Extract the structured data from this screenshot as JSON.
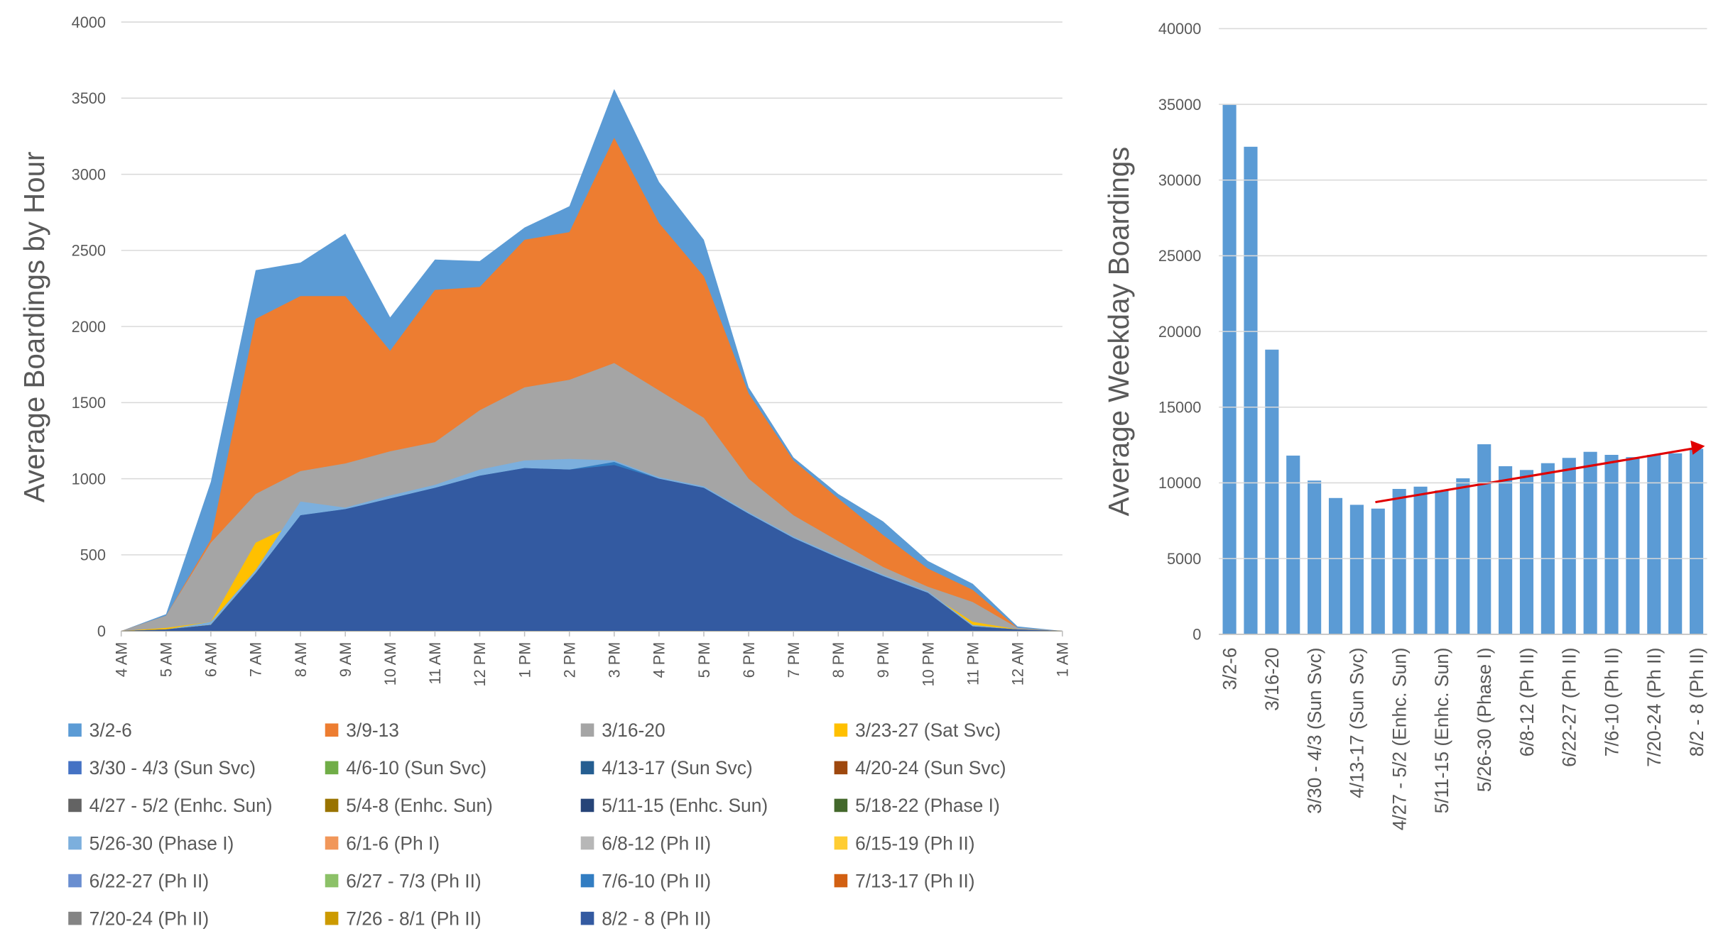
{
  "chart_data": [
    {
      "type": "area",
      "y_label": "Average Boardings by Hour",
      "categories": [
        "4 AM",
        "5 AM",
        "6 AM",
        "7 AM",
        "8 AM",
        "9 AM",
        "10 AM",
        "11 AM",
        "12 PM",
        "1 PM",
        "2 PM",
        "3 PM",
        "4 PM",
        "5 PM",
        "6 PM",
        "7 PM",
        "8 PM",
        "9 PM",
        "10 PM",
        "11 PM",
        "12 AM",
        "1 AM"
      ],
      "ylim": [
        0,
        4000
      ],
      "yticks": [
        0,
        500,
        1000,
        1500,
        2000,
        2500,
        3000,
        3500,
        4000
      ],
      "grid": true,
      "series": [
        {
          "name": "3/2-6",
          "color": "#5b9bd5",
          "values": [
            0,
            110,
            980,
            2370,
            2420,
            2610,
            2060,
            2440,
            2430,
            2650,
            2790,
            3560,
            2950,
            2570,
            1600,
            1140,
            900,
            720,
            460,
            310,
            30,
            0
          ]
        },
        {
          "name": "3/9-13",
          "color": "#ed7d31",
          "values": [
            0,
            100,
            600,
            2050,
            2200,
            2200,
            1840,
            2240,
            2260,
            2570,
            2620,
            3240,
            2680,
            2330,
            1560,
            1120,
            870,
            630,
            410,
            270,
            20,
            0
          ]
        },
        {
          "name": "3/16-20",
          "color": "#a5a5a5",
          "values": [
            0,
            100,
            580,
            900,
            1050,
            1100,
            1180,
            1240,
            1450,
            1600,
            1650,
            1760,
            1580,
            1400,
            1000,
            760,
            590,
            420,
            290,
            190,
            20,
            0
          ]
        },
        {
          "name": "3/23-27 (Sat Svc)",
          "color": "#ffc000",
          "values": [
            0,
            20,
            60,
            580,
            720,
            800,
            870,
            940,
            1020,
            1070,
            1060,
            1090,
            1000,
            940,
            770,
            610,
            480,
            360,
            250,
            60,
            10,
            0
          ]
        },
        {
          "name": "3/30 - 4/3 (Sun Svc)",
          "color": "#4472c4",
          "values": [
            0,
            5,
            30,
            320,
            620,
            660,
            720,
            780,
            840,
            880,
            870,
            900,
            820,
            770,
            630,
            500,
            390,
            290,
            200,
            25,
            5,
            0
          ]
        },
        {
          "name": "4/6-10 (Sun Svc)",
          "color": "#70ad47",
          "values": [
            0,
            5,
            30,
            330,
            630,
            670,
            730,
            790,
            850,
            890,
            880,
            910,
            830,
            780,
            640,
            510,
            400,
            300,
            210,
            25,
            5,
            0
          ]
        },
        {
          "name": "4/13-17 (Sun Svc)",
          "color": "#255e91",
          "values": [
            0,
            5,
            30,
            340,
            640,
            680,
            740,
            800,
            860,
            900,
            890,
            920,
            840,
            790,
            650,
            520,
            410,
            310,
            210,
            25,
            5,
            0
          ]
        },
        {
          "name": "4/20-24 (Sun Svc)",
          "color": "#9e480e",
          "values": [
            0,
            5,
            30,
            330,
            620,
            660,
            720,
            780,
            840,
            880,
            870,
            900,
            820,
            770,
            630,
            500,
            390,
            290,
            200,
            25,
            5,
            0
          ]
        },
        {
          "name": "4/27 - 5/2 (Enhc. Sun)",
          "color": "#636363",
          "values": [
            0,
            5,
            35,
            350,
            680,
            720,
            790,
            850,
            910,
            960,
            950,
            980,
            900,
            840,
            690,
            550,
            430,
            320,
            220,
            25,
            5,
            0
          ]
        },
        {
          "name": "5/4-8 (Enhc. Sun)",
          "color": "#997300",
          "values": [
            0,
            5,
            35,
            360,
            700,
            740,
            810,
            870,
            930,
            980,
            970,
            1000,
            920,
            860,
            710,
            560,
            440,
            330,
            230,
            25,
            5,
            0
          ]
        },
        {
          "name": "5/11-15 (Enhc. Sun)",
          "color": "#264478",
          "values": [
            0,
            5,
            35,
            360,
            690,
            730,
            800,
            860,
            920,
            970,
            960,
            990,
            910,
            850,
            700,
            560,
            440,
            330,
            230,
            25,
            5,
            0
          ]
        },
        {
          "name": "5/18-22 (Phase I)",
          "color": "#43682b",
          "values": [
            0,
            5,
            35,
            370,
            720,
            760,
            830,
            890,
            960,
            1010,
            1000,
            1030,
            950,
            890,
            730,
            580,
            460,
            340,
            240,
            30,
            5,
            0
          ]
        },
        {
          "name": "5/26-30 (Phase I)",
          "color": "#7cafdd",
          "values": [
            0,
            10,
            60,
            400,
            850,
            810,
            890,
            960,
            1060,
            1120,
            1130,
            1120,
            1010,
            950,
            780,
            620,
            490,
            370,
            260,
            40,
            10,
            0
          ]
        },
        {
          "name": "6/1-6 (Ph I)",
          "color": "#f1975a",
          "values": [
            0,
            10,
            40,
            370,
            740,
            780,
            850,
            910,
            990,
            1040,
            1030,
            1060,
            970,
            910,
            750,
            590,
            470,
            350,
            240,
            30,
            10,
            0
          ]
        },
        {
          "name": "6/8-12 (Ph II)",
          "color": "#b7b7b7",
          "values": [
            0,
            10,
            40,
            370,
            750,
            790,
            860,
            930,
            1000,
            1050,
            1040,
            1070,
            980,
            920,
            760,
            600,
            470,
            350,
            250,
            30,
            10,
            0
          ]
        },
        {
          "name": "6/15-19 (Ph II)",
          "color": "#ffcd33",
          "values": [
            0,
            10,
            40,
            370,
            745,
            785,
            855,
            925,
            1000,
            1050,
            1040,
            1070,
            985,
            925,
            760,
            600,
            470,
            355,
            245,
            30,
            10,
            0
          ]
        },
        {
          "name": "6/22-27 (Ph II)",
          "color": "#698ed0",
          "values": [
            0,
            10,
            40,
            375,
            755,
            795,
            865,
            935,
            1010,
            1060,
            1050,
            1080,
            990,
            930,
            765,
            605,
            475,
            355,
            250,
            30,
            10,
            0
          ]
        },
        {
          "name": "6/27 - 7/3 (Ph II)",
          "color": "#8cc168",
          "values": [
            0,
            10,
            40,
            370,
            740,
            780,
            850,
            920,
            995,
            1045,
            1035,
            1065,
            975,
            915,
            750,
            595,
            465,
            350,
            245,
            30,
            10,
            0
          ]
        },
        {
          "name": "7/6-10 (Ph II)",
          "color": "#327dc2",
          "values": [
            0,
            10,
            40,
            380,
            760,
            800,
            870,
            940,
            1020,
            1070,
            1060,
            1110,
            1000,
            940,
            770,
            610,
            480,
            360,
            250,
            30,
            10,
            0
          ]
        },
        {
          "name": "7/13-17 (Ph II)",
          "color": "#d26012",
          "values": [
            0,
            10,
            40,
            375,
            755,
            795,
            865,
            935,
            1010,
            1060,
            1050,
            1080,
            990,
            930,
            765,
            605,
            475,
            355,
            250,
            30,
            10,
            0
          ]
        },
        {
          "name": "7/20-24 (Ph II)",
          "color": "#848484",
          "values": [
            0,
            10,
            40,
            375,
            750,
            790,
            860,
            930,
            1005,
            1055,
            1045,
            1075,
            985,
            925,
            760,
            600,
            470,
            355,
            245,
            30,
            10,
            0
          ]
        },
        {
          "name": "7/26 - 8/1 (Ph II)",
          "color": "#cc9a00",
          "values": [
            0,
            10,
            40,
            380,
            755,
            795,
            865,
            935,
            1015,
            1065,
            1055,
            1085,
            995,
            935,
            765,
            605,
            478,
            358,
            248,
            30,
            10,
            0
          ]
        },
        {
          "name": "8/2 - 8 (Ph II)",
          "color": "#335aa1",
          "values": [
            0,
            10,
            40,
            380,
            760,
            800,
            870,
            940,
            1020,
            1070,
            1060,
            1090,
            1000,
            940,
            770,
            610,
            480,
            360,
            250,
            30,
            10,
            0
          ]
        }
      ]
    },
    {
      "type": "bar",
      "y_label": "Average Weekday Boardings",
      "categories": [
        "3/2-6",
        null,
        "3/16-20",
        null,
        "3/30 - 4/3 (Sun Svc)",
        null,
        "4/13-17 (Sun Svc)",
        null,
        "4/27 - 5/2 (Enhc. Sun)",
        null,
        "5/11-15 (Enhc. Sun)",
        null,
        "5/26-30 (Phase I)",
        null,
        "6/8-12 (Ph II)",
        null,
        "6/22-27 (Ph II)",
        null,
        "7/6-10 (Ph II)",
        null,
        "7/20-24 (Ph II)",
        null,
        "8/2 - 8 (Ph II)"
      ],
      "values": [
        35000,
        32200,
        18800,
        11800,
        10150,
        9000,
        8550,
        8300,
        9600,
        9750,
        9500,
        10300,
        12550,
        11100,
        10850,
        11300,
        11650,
        12050,
        11850,
        11700,
        11850,
        11950,
        12250
      ],
      "color": "#5b9bd5",
      "ylim": [
        0,
        40000
      ],
      "yticks": [
        0,
        5000,
        10000,
        15000,
        20000,
        25000,
        30000,
        35000,
        40000
      ],
      "grid": true
    }
  ]
}
